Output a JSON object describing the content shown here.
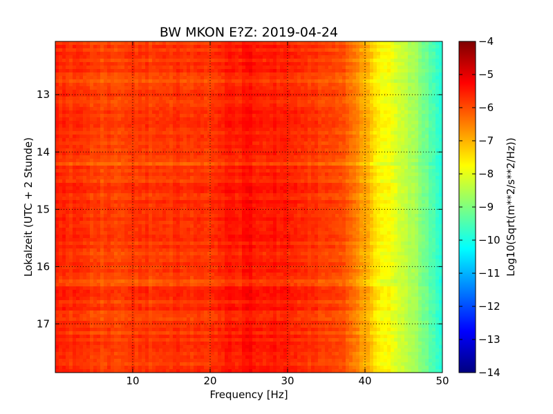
{
  "chart_data": {
    "type": "heatmap",
    "title": "BW MKON E?Z: 2019-04-24",
    "xlabel": "Frequency [Hz]",
    "ylabel": "Lokalzeit (UTC + 2 Stunde)",
    "xlim": [
      0,
      50
    ],
    "ylim": [
      12.07,
      17.85
    ],
    "x_ticks": [
      10,
      20,
      30,
      40,
      50
    ],
    "y_ticks": [
      13,
      14,
      15,
      16,
      17
    ],
    "y_inverted": true,
    "grid": true,
    "colorbar": {
      "label": "Log10(Sqrt(m**2/s**2/Hz))",
      "range": [
        -14,
        -4
      ],
      "ticks": [
        -4,
        -5,
        -6,
        -7,
        -8,
        -9,
        -10,
        -11,
        -12,
        -13,
        -14
      ],
      "colormap": "jet",
      "colors": [
        "#00007f",
        "#0000ff",
        "#007fff",
        "#00ffff",
        "#7fff7f",
        "#ffff00",
        "#ff7f00",
        "#ff0000",
        "#7f0000"
      ]
    },
    "spectral_profile": {
      "freq_hz": [
        0,
        5,
        10,
        20,
        25,
        30,
        35,
        38,
        40,
        42,
        44,
        46,
        48,
        50
      ],
      "value": [
        -5.6,
        -5.9,
        -5.8,
        -5.7,
        -5.4,
        -5.6,
        -5.8,
        -6.2,
        -6.9,
        -7.6,
        -8.0,
        -8.5,
        -9.2,
        -9.8
      ]
    }
  }
}
